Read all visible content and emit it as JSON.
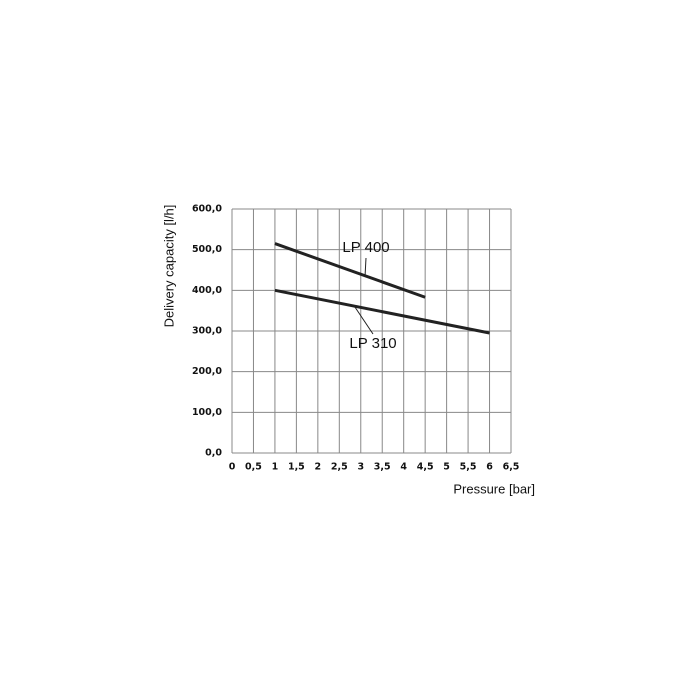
{
  "chart_data": {
    "type": "line",
    "x_label": "Pressure [bar]",
    "y_label": "Delivery capacity [l/h]",
    "series": [
      {
        "name": "LP 400",
        "color": "#222222",
        "x": [
          1,
          4.5
        ],
        "values": [
          515,
          383
        ]
      },
      {
        "name": "LP 310",
        "color": "#222222",
        "x": [
          1,
          6
        ],
        "values": [
          400,
          295
        ]
      }
    ],
    "xlim": [
      0,
      6.5
    ],
    "xticks": [
      0,
      {
        "value": 0.5,
        "label": "0,5"
      },
      1,
      {
        "value": 1.5,
        "label": "1,5"
      },
      2,
      {
        "value": 2.5,
        "label": "2,5"
      },
      3,
      {
        "value": 3.5,
        "label": "3,5"
      },
      4,
      {
        "value": 4.5,
        "label": "4,5"
      },
      5,
      {
        "value": 5.5,
        "label": "5,5"
      },
      6,
      {
        "value": 6.5,
        "label": "6,5"
      }
    ],
    "ylim": [
      0,
      600
    ],
    "yticks": [
      {
        "value": 0,
        "label": "0,0"
      },
      {
        "value": 100,
        "label": "100,0"
      },
      {
        "value": 200,
        "label": "200,0"
      },
      {
        "value": 300,
        "label": "300,0"
      },
      {
        "value": 400,
        "label": "400,0"
      },
      {
        "value": 500,
        "label": "500,0"
      },
      {
        "value": 600,
        "label": "600,0"
      }
    ],
    "grid": true
  }
}
